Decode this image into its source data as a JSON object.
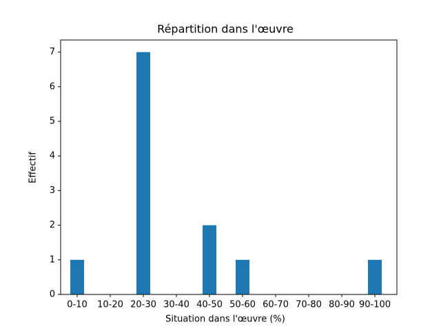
{
  "chart_data": {
    "type": "bar",
    "title": "Répartition dans l'œuvre",
    "x_label": "Situation dans l'œuvre (%)",
    "y_label": "Effectif",
    "categories": [
      "0-10",
      "10-20",
      "20-30",
      "30-40",
      "40-50",
      "50-60",
      "60-70",
      "70-80",
      "80-90",
      "90-100"
    ],
    "values": [
      1,
      0,
      7,
      0,
      2,
      1,
      0,
      0,
      0,
      1
    ],
    "color": "#1f77b4",
    "ylim": [
      0,
      7.35
    ],
    "yticks": [
      0,
      1,
      2,
      3,
      4,
      5,
      6,
      7
    ],
    "grid": false
  }
}
